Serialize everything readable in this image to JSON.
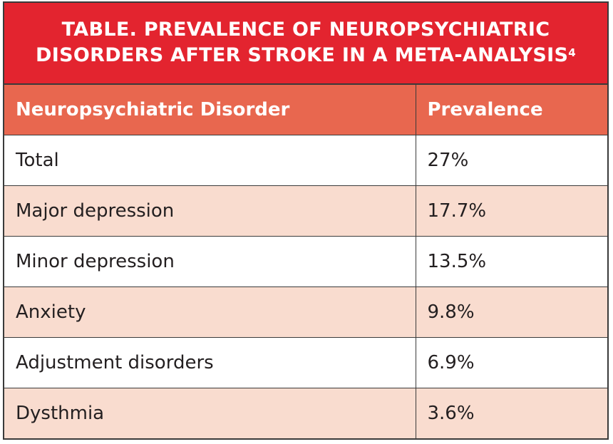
{
  "title": {
    "lines": [
      "TABLE. PREVALENCE OF NEUROPSYCHIATRIC",
      "DISORDERS AFTER STROKE IN A META-ANALYSIS"
    ],
    "superscript": "4"
  },
  "table": {
    "header": [
      "Neuropsychiatric Disorder",
      "Prevalence"
    ],
    "rows": [
      [
        "Total",
        "27%"
      ],
      [
        "Major depression",
        "17.7%"
      ],
      [
        "Minor depression",
        "13.5%"
      ],
      [
        "Anxiety",
        "9.8%"
      ],
      [
        "Adjustment disorders",
        "6.9%"
      ],
      [
        "Dysthmia",
        "3.6%"
      ]
    ]
  }
}
